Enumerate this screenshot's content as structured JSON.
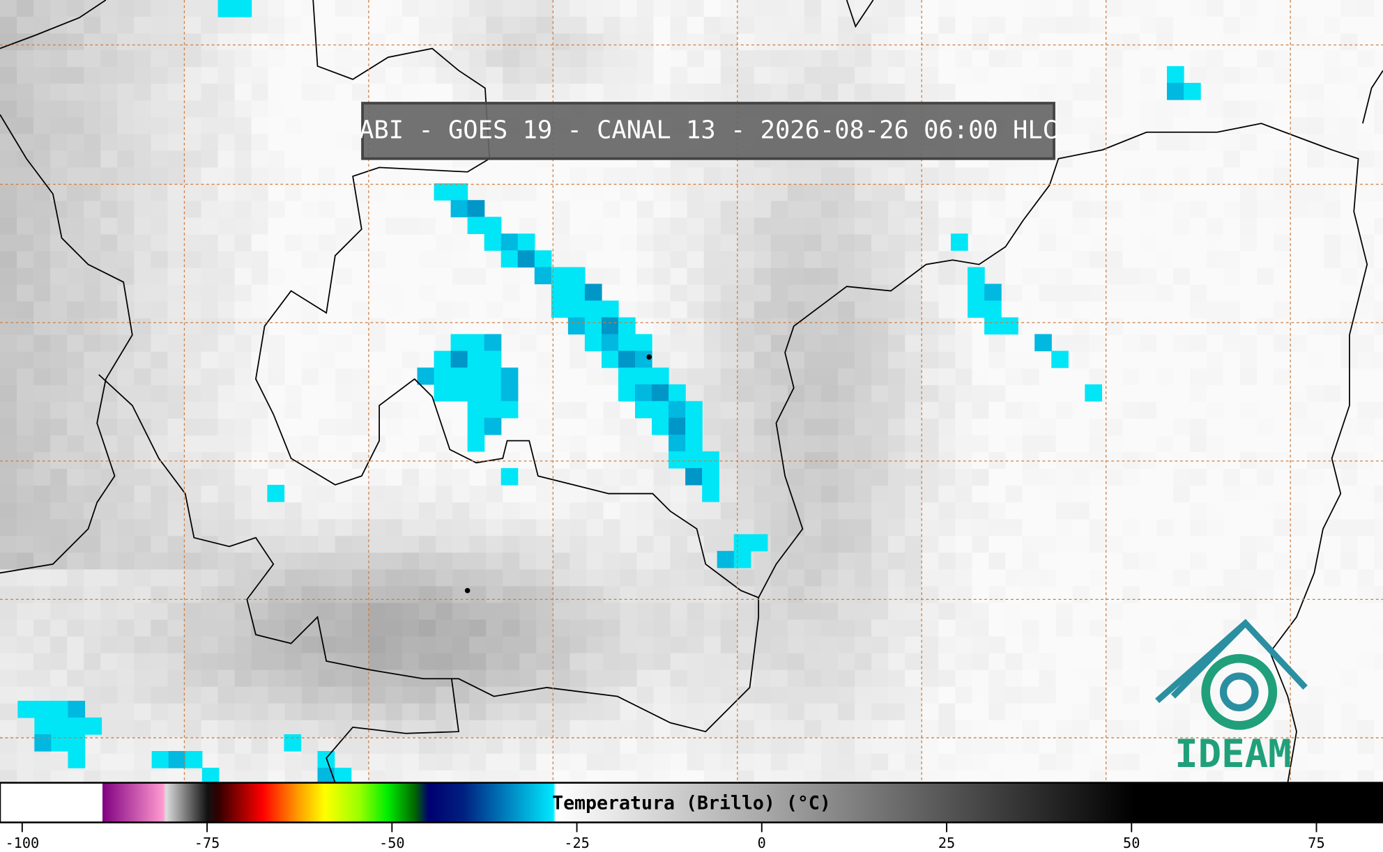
{
  "header": {
    "title": "ABI - GOES 19 - CANAL 13 - 2026-08-26 06:00 HLC"
  },
  "colorbar": {
    "label": "Temperatura (Brillo) (°C)",
    "xlim": [
      -103,
      84
    ],
    "ticks": [
      -100,
      -75,
      -50,
      -25,
      0,
      25,
      50,
      75
    ]
  },
  "logo": {
    "text": "IDEAM"
  }
}
